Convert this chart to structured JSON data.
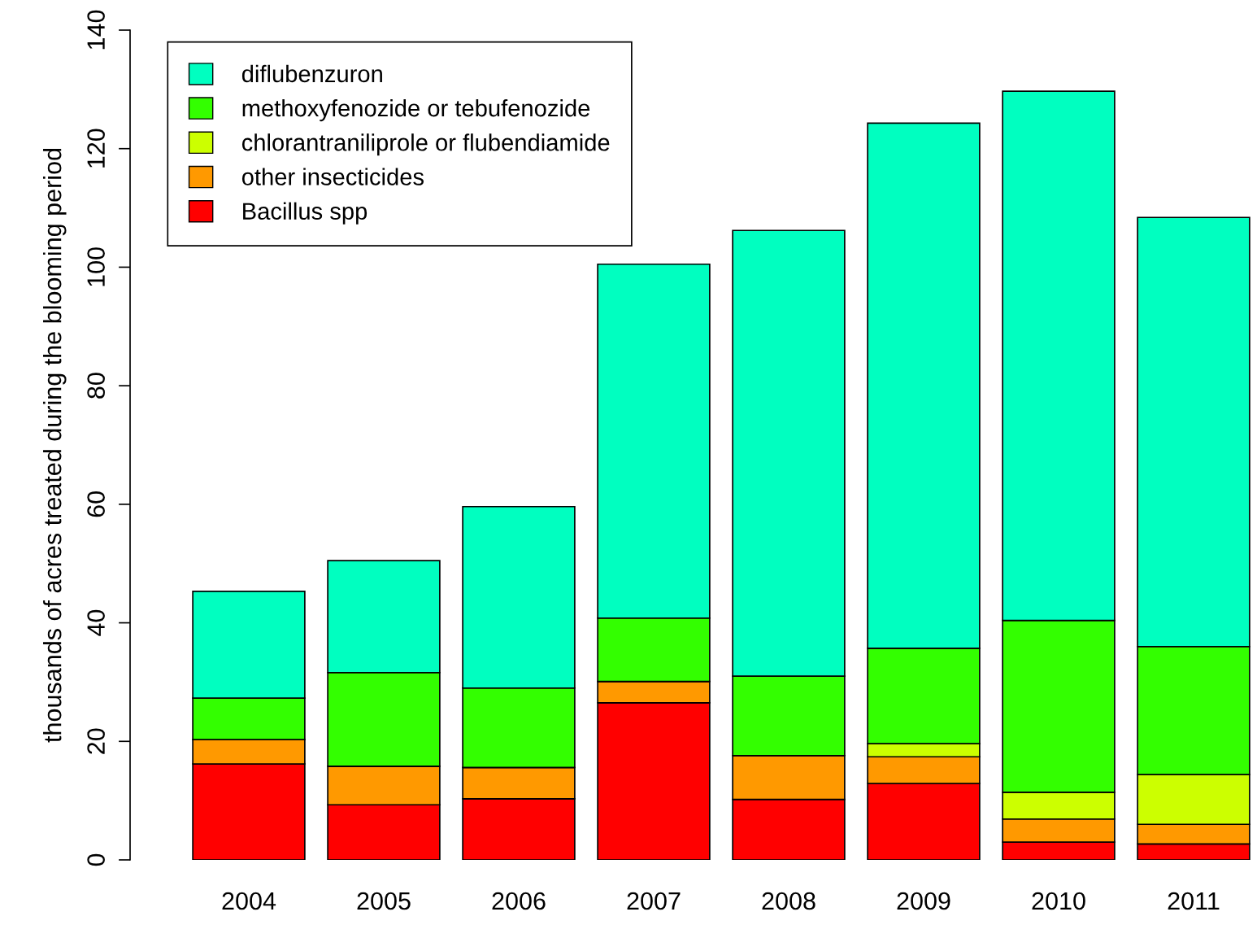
{
  "chart_data": {
    "type": "bar",
    "stacked": true,
    "ylabel": "thousands of acres treated during the blooming period",
    "categories": [
      "2004",
      "2005",
      "2006",
      "2007",
      "2008",
      "2009",
      "2010",
      "2011"
    ],
    "series": [
      {
        "name": "Bacillus spp",
        "color": "#ff0000",
        "values": [
          16.2,
          9.3,
          10.3,
          26.5,
          10.2,
          12.9,
          3.0,
          2.7
        ]
      },
      {
        "name": "other insecticides",
        "color": "#ff9900",
        "values": [
          4.1,
          6.5,
          5.3,
          3.6,
          7.4,
          4.5,
          3.9,
          3.3
        ]
      },
      {
        "name": "chlorantraniliprole or flubendiamide",
        "color": "#ccff00",
        "values": [
          0,
          0,
          0,
          0,
          0,
          2.2,
          4.5,
          8.4
        ]
      },
      {
        "name": "methoxyfenozide or tebufenozide",
        "color": "#33ff00",
        "values": [
          7.0,
          15.8,
          13.4,
          10.7,
          13.4,
          16.1,
          29.0,
          21.6
        ]
      },
      {
        "name": "diflubenzuron",
        "color": "#00ffc0",
        "values": [
          18.0,
          18.9,
          30.6,
          59.7,
          75.2,
          88.6,
          89.3,
          72.4
        ]
      }
    ],
    "ylim": [
      0,
      140
    ],
    "yticks": [
      0,
      20,
      40,
      60,
      80,
      100,
      120,
      140
    ],
    "legend": "top left",
    "grid": false
  }
}
